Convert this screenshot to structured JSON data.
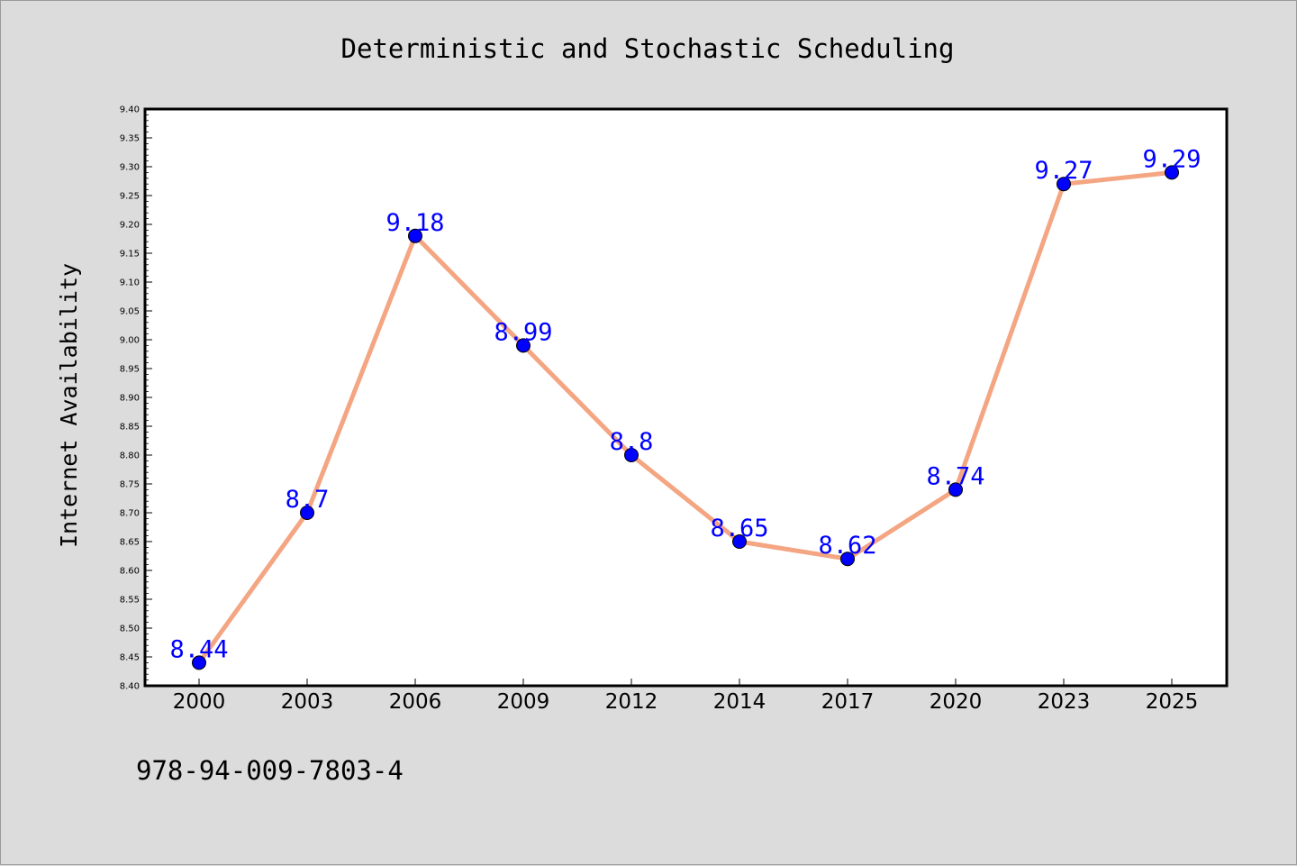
{
  "chart_data": {
    "type": "line",
    "title": "Deterministic and Stochastic Scheduling",
    "ylabel": "Internet Availability",
    "xlabel": "",
    "categories": [
      "2000",
      "2003",
      "2006",
      "2009",
      "2012",
      "2014",
      "2017",
      "2020",
      "2023",
      "2025"
    ],
    "series": [
      {
        "values": [
          8.44,
          8.7,
          9.18,
          8.99,
          8.8,
          8.65,
          8.62,
          8.74,
          9.27,
          9.29
        ],
        "data_labels": [
          "8.44",
          "8.7",
          "9.18",
          "8.99",
          "8.8",
          "8.65",
          "8.62",
          "8.74",
          "9.27",
          "9.29"
        ],
        "line_color": "#f4a582",
        "marker_color": "#0000ff",
        "label_color": "#0000ff"
      }
    ],
    "ylim": [
      8.4,
      9.4
    ],
    "yticks": [
      "8.40",
      "8.45",
      "8.50",
      "8.55",
      "8.60",
      "8.65",
      "8.70",
      "8.75",
      "8.80",
      "8.85",
      "8.90",
      "8.95",
      "9.00",
      "9.05",
      "9.10",
      "9.15",
      "9.20",
      "9.25",
      "9.30",
      "9.35",
      "9.40"
    ],
    "grid": false,
    "legend": "none"
  },
  "footer": {
    "isbn": "978-94-009-7803-4"
  },
  "colors": {
    "background": "#dcdcdc",
    "plot_background": "#ffffff",
    "axis": "#000000"
  }
}
